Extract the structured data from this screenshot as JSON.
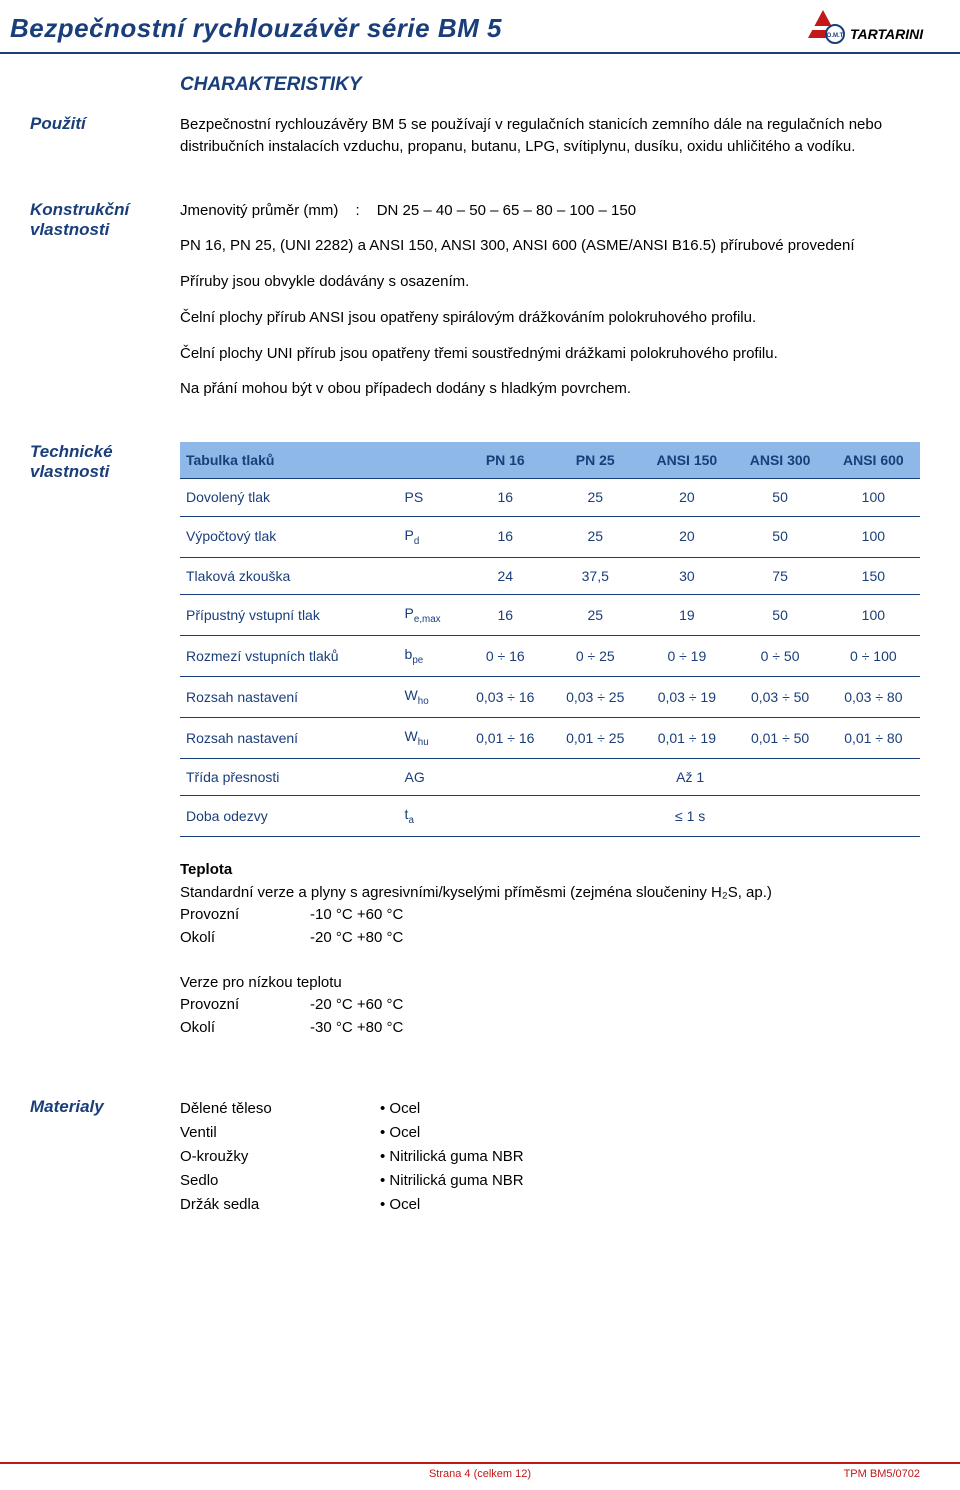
{
  "header": {
    "title": "Bezpečnostní rychlouzávěr série BM 5",
    "brand": "TARTARINI",
    "brand_color": "#c21818",
    "logo_circle_stroke": "#1a3e7a",
    "logo_triangle_fill": "#c21818"
  },
  "characteristics_heading": "CHARAKTERISTIKY",
  "sections": {
    "pouziti": {
      "label": "Použití",
      "text": "Bezpečnostní rychlouzávěry BM 5 se používají v regulačních stanicích zemního dále na regulačních nebo distribučních instalacích vzduchu, propanu, butanu, LPG, svítiplynu, dusíku, oxidu uhličitého a vodíku."
    },
    "konstrukcni": {
      "label": "Konstrukční vlastnosti",
      "line1a": "Jmenovitý průměr (mm)",
      "line1b": "DN 25 – 40 – 50 – 65 – 80 – 100 – 150",
      "line2": "PN 16, PN 25, (UNI 2282) a ANSI 150, ANSI 300, ANSI 600 (ASME/ANSI B16.5) přírubové provedení",
      "line3": "Příruby jsou obvykle dodávány s osazením.",
      "line4": "Čelní plochy přírub ANSI jsou opatřeny spirálovým drážkováním polokruhového profilu.",
      "line5": "Čelní plochy UNI přírub jsou opatřeny třemi soustřednými drážkami polokruhového profilu.",
      "line6": "Na přání mohou být v obou případech dodány s hladkým povrchem."
    },
    "technicke": {
      "label": "Technické vlastnosti",
      "table": {
        "header_bg": "#8db8e8",
        "border_color": "#1a3e7a",
        "text_color": "#1a3e7a",
        "columns": [
          "Tabulka tlaků",
          "",
          "PN 16",
          "PN 25",
          "ANSI 150",
          "ANSI 300",
          "ANSI 600"
        ],
        "rows": [
          {
            "label": "Dovolený tlak",
            "sym": "PS",
            "c": [
              "16",
              "25",
              "20",
              "50",
              "100"
            ]
          },
          {
            "label": "Výpočtový tlak",
            "sym": "P_d",
            "c": [
              "16",
              "25",
              "20",
              "50",
              "100"
            ]
          },
          {
            "label": "Tlaková zkouška",
            "sym": "",
            "c": [
              "24",
              "37,5",
              "30",
              "75",
              "150"
            ]
          },
          {
            "label": "Přípustný vstupní tlak",
            "sym": "P_e,max",
            "c": [
              "16",
              "25",
              "19",
              "50",
              "100"
            ]
          },
          {
            "label": "Rozmezí vstupních tlaků",
            "sym": "b_pe",
            "c": [
              "0 ÷ 16",
              "0 ÷ 25",
              "0 ÷ 19",
              "0 ÷ 50",
              "0 ÷ 100"
            ]
          },
          {
            "label": "Rozsah nastavení",
            "sym": "W_ho",
            "c": [
              "0,03 ÷ 16",
              "0,03 ÷ 25",
              "0,03 ÷ 19",
              "0,03 ÷ 50",
              "0,03 ÷ 80"
            ]
          },
          {
            "label": "Rozsah nastavení",
            "sym": "W_hu",
            "c": [
              "0,01 ÷ 16",
              "0,01 ÷ 25",
              "0,01 ÷ 19",
              "0,01 ÷ 50",
              "0,01 ÷ 80"
            ]
          },
          {
            "label": "Třída přesnosti",
            "sym": "AG",
            "span": "Až 1"
          },
          {
            "label": "Doba odezvy",
            "sym": "t_a",
            "span": "≤ 1 s"
          }
        ]
      },
      "teplota": {
        "heading": "Teplota",
        "std_note": "Standardní verze a plyny s agresivními/kyselými příměsmi (zejména sloučeniny H₂S, ap.)",
        "std": [
          {
            "k": "Provozní",
            "v": "-10 °C +60 °C"
          },
          {
            "k": "Okolí",
            "v": "-20 °C +80 °C"
          }
        ],
        "low_heading": "Verze pro nízkou teplotu",
        "low": [
          {
            "k": "Provozní",
            "v": "-20 °C +60 °C"
          },
          {
            "k": "Okolí",
            "v": "-30 °C +80 °C"
          }
        ]
      }
    },
    "materialy": {
      "label": "Materialy",
      "rows": [
        {
          "k": "Dělené těleso",
          "v": "Ocel"
        },
        {
          "k": "Ventil",
          "v": "Ocel"
        },
        {
          "k": "O-kroužky",
          "v": "Nitrilická guma NBR"
        },
        {
          "k": "Sedlo",
          "v": "Nitrilická guma NBR"
        },
        {
          "k": "Držák sedla",
          "v": "Ocel"
        }
      ]
    }
  },
  "footer": {
    "center": "Strana 4 (celkem 12)",
    "right": "TPM BM5/0702",
    "color": "#c21818"
  }
}
